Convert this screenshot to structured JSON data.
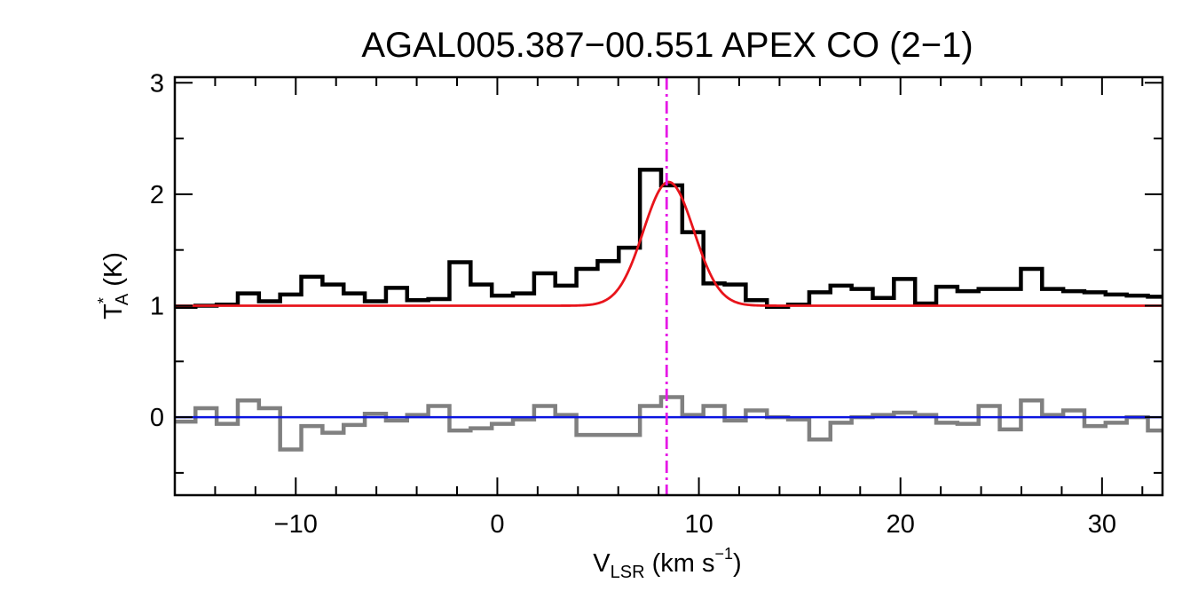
{
  "chart_data": {
    "type": "line",
    "title": "AGAL005.387−00.551   APEX CO (2−1)",
    "xlabel": {
      "main": "V",
      "sub": "LSR",
      "units_open": " (km s",
      "sup": "−1",
      "units_close": ")"
    },
    "ylabel": {
      "main": "T",
      "sup": "*",
      "sub": "A",
      "units": " (K)"
    },
    "xlim": [
      -16,
      33
    ],
    "ylim": [
      -0.7,
      3.05
    ],
    "xticks": [
      {
        "value": -10,
        "label": "−10"
      },
      {
        "value": 0,
        "label": "0"
      },
      {
        "value": 10,
        "label": "10"
      },
      {
        "value": 20,
        "label": "20"
      },
      {
        "value": 30,
        "label": "30"
      }
    ],
    "yticks": [
      {
        "value": 0,
        "label": "0"
      },
      {
        "value": 1,
        "label": "1"
      },
      {
        "value": 2,
        "label": "2"
      },
      {
        "value": 3,
        "label": "3"
      }
    ],
    "x_minor_step": 2,
    "y_minor_step": 0.5,
    "grid": false,
    "colors": {
      "spectrum": "#000000",
      "fit": "#e8141b",
      "residual": "#808080",
      "baseline": "#0a14e0",
      "vline": "#e619e6",
      "axes": "#000000"
    },
    "series": [
      {
        "id": "spectrum",
        "style": "step",
        "bin_width": 1.05,
        "x": [
          -15.5,
          -14.45,
          -13.4,
          -12.35,
          -11.3,
          -10.25,
          -9.2,
          -8.15,
          -7.1,
          -6.05,
          -5.0,
          -3.95,
          -2.9,
          -1.85,
          -0.8,
          0.25,
          1.3,
          2.35,
          3.4,
          4.45,
          5.5,
          6.55,
          7.6,
          8.65,
          9.7,
          10.75,
          11.8,
          12.85,
          13.9,
          14.95,
          16.0,
          17.05,
          18.1,
          19.15,
          20.2,
          21.25,
          22.3,
          23.35,
          24.4,
          25.45,
          26.5,
          27.55,
          28.6,
          29.65,
          30.7,
          31.75,
          32.8
        ],
        "y": [
          0.99,
          1.0,
          1.01,
          1.11,
          1.04,
          1.1,
          1.26,
          1.19,
          1.11,
          1.04,
          1.16,
          1.05,
          1.06,
          1.39,
          1.19,
          1.09,
          1.11,
          1.29,
          1.18,
          1.33,
          1.4,
          1.52,
          2.22,
          2.08,
          1.66,
          1.2,
          1.19,
          1.05,
          0.99,
          1.01,
          1.12,
          1.18,
          1.15,
          1.07,
          1.24,
          1.02,
          1.17,
          1.13,
          1.15,
          1.15,
          1.33,
          1.15,
          1.13,
          1.12,
          1.1,
          1.09,
          1.08
        ]
      },
      {
        "id": "residual",
        "style": "step",
        "bin_width": 1.05,
        "x": [
          -15.5,
          -14.45,
          -13.4,
          -12.35,
          -11.3,
          -10.25,
          -9.2,
          -8.15,
          -7.1,
          -6.05,
          -5.0,
          -3.95,
          -2.9,
          -1.85,
          -0.8,
          0.25,
          1.3,
          2.35,
          3.4,
          4.45,
          5.5,
          6.55,
          7.6,
          8.65,
          9.7,
          10.75,
          11.8,
          12.85,
          13.9,
          14.95,
          16.0,
          17.05,
          18.1,
          19.15,
          20.2,
          21.25,
          22.3,
          23.35,
          24.4,
          25.45,
          26.5,
          27.55,
          28.6,
          29.65,
          30.7,
          31.75,
          32.8
        ],
        "y": [
          -0.04,
          0.08,
          -0.06,
          0.15,
          0.08,
          -0.29,
          -0.08,
          -0.14,
          -0.07,
          0.03,
          -0.03,
          0.02,
          0.1,
          -0.12,
          -0.1,
          -0.06,
          -0.02,
          0.1,
          0.02,
          -0.16,
          -0.16,
          -0.16,
          0.1,
          0.18,
          0.02,
          0.1,
          -0.03,
          0.06,
          0.0,
          -0.02,
          -0.2,
          -0.05,
          0.0,
          0.02,
          0.04,
          0.02,
          -0.05,
          -0.06,
          0.1,
          -0.11,
          0.15,
          0.02,
          0.06,
          -0.08,
          -0.05,
          0.0,
          -0.12
        ]
      },
      {
        "id": "fit",
        "style": "gaussian",
        "baseline": 1.0,
        "amplitude": 1.11,
        "center": 8.5,
        "sigma": 1.25
      },
      {
        "id": "baseline",
        "style": "hline",
        "value": 0.0
      }
    ],
    "vline": {
      "x": 8.4,
      "style": "dash-dot"
    }
  }
}
